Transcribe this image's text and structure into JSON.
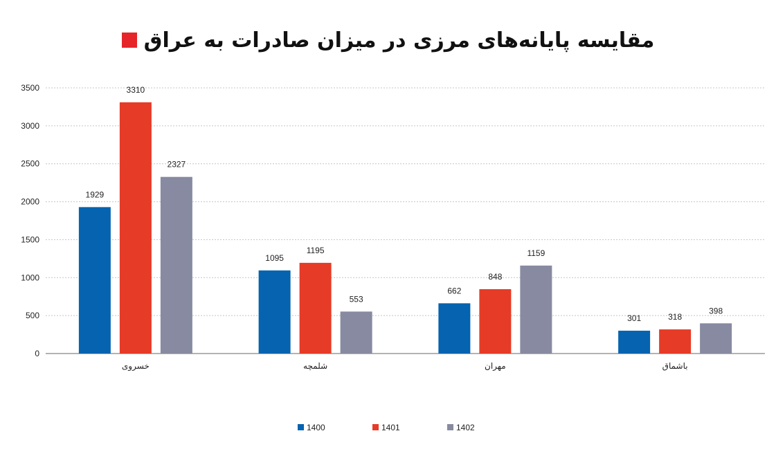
{
  "title": "مقایسه پایانه‌های مرزی در میزان صادرات به عراق",
  "colors": {
    "title_marker": "#e5252a"
  },
  "chart_data": {
    "type": "bar",
    "title": "مقایسه پایانه‌های مرزی در میزان صادرات به عراق",
    "categories": [
      "خسروی",
      "شلمچه",
      "مهران",
      "باشماق"
    ],
    "series": [
      {
        "name": "1400",
        "color": "#0563b0",
        "values": [
          1929,
          1095,
          662,
          301
        ]
      },
      {
        "name": "1401",
        "color": "#e63b26",
        "values": [
          3310,
          1195,
          848,
          318
        ]
      },
      {
        "name": "1402",
        "color": "#878aa0",
        "values": [
          2327,
          553,
          1159,
          398
        ]
      }
    ],
    "ylim": [
      0,
      3500
    ],
    "yticks": [
      0,
      500,
      1000,
      1500,
      2000,
      2500,
      3000,
      3500
    ],
    "grid": true,
    "legend": "bottom",
    "xlabel": "",
    "ylabel": ""
  }
}
